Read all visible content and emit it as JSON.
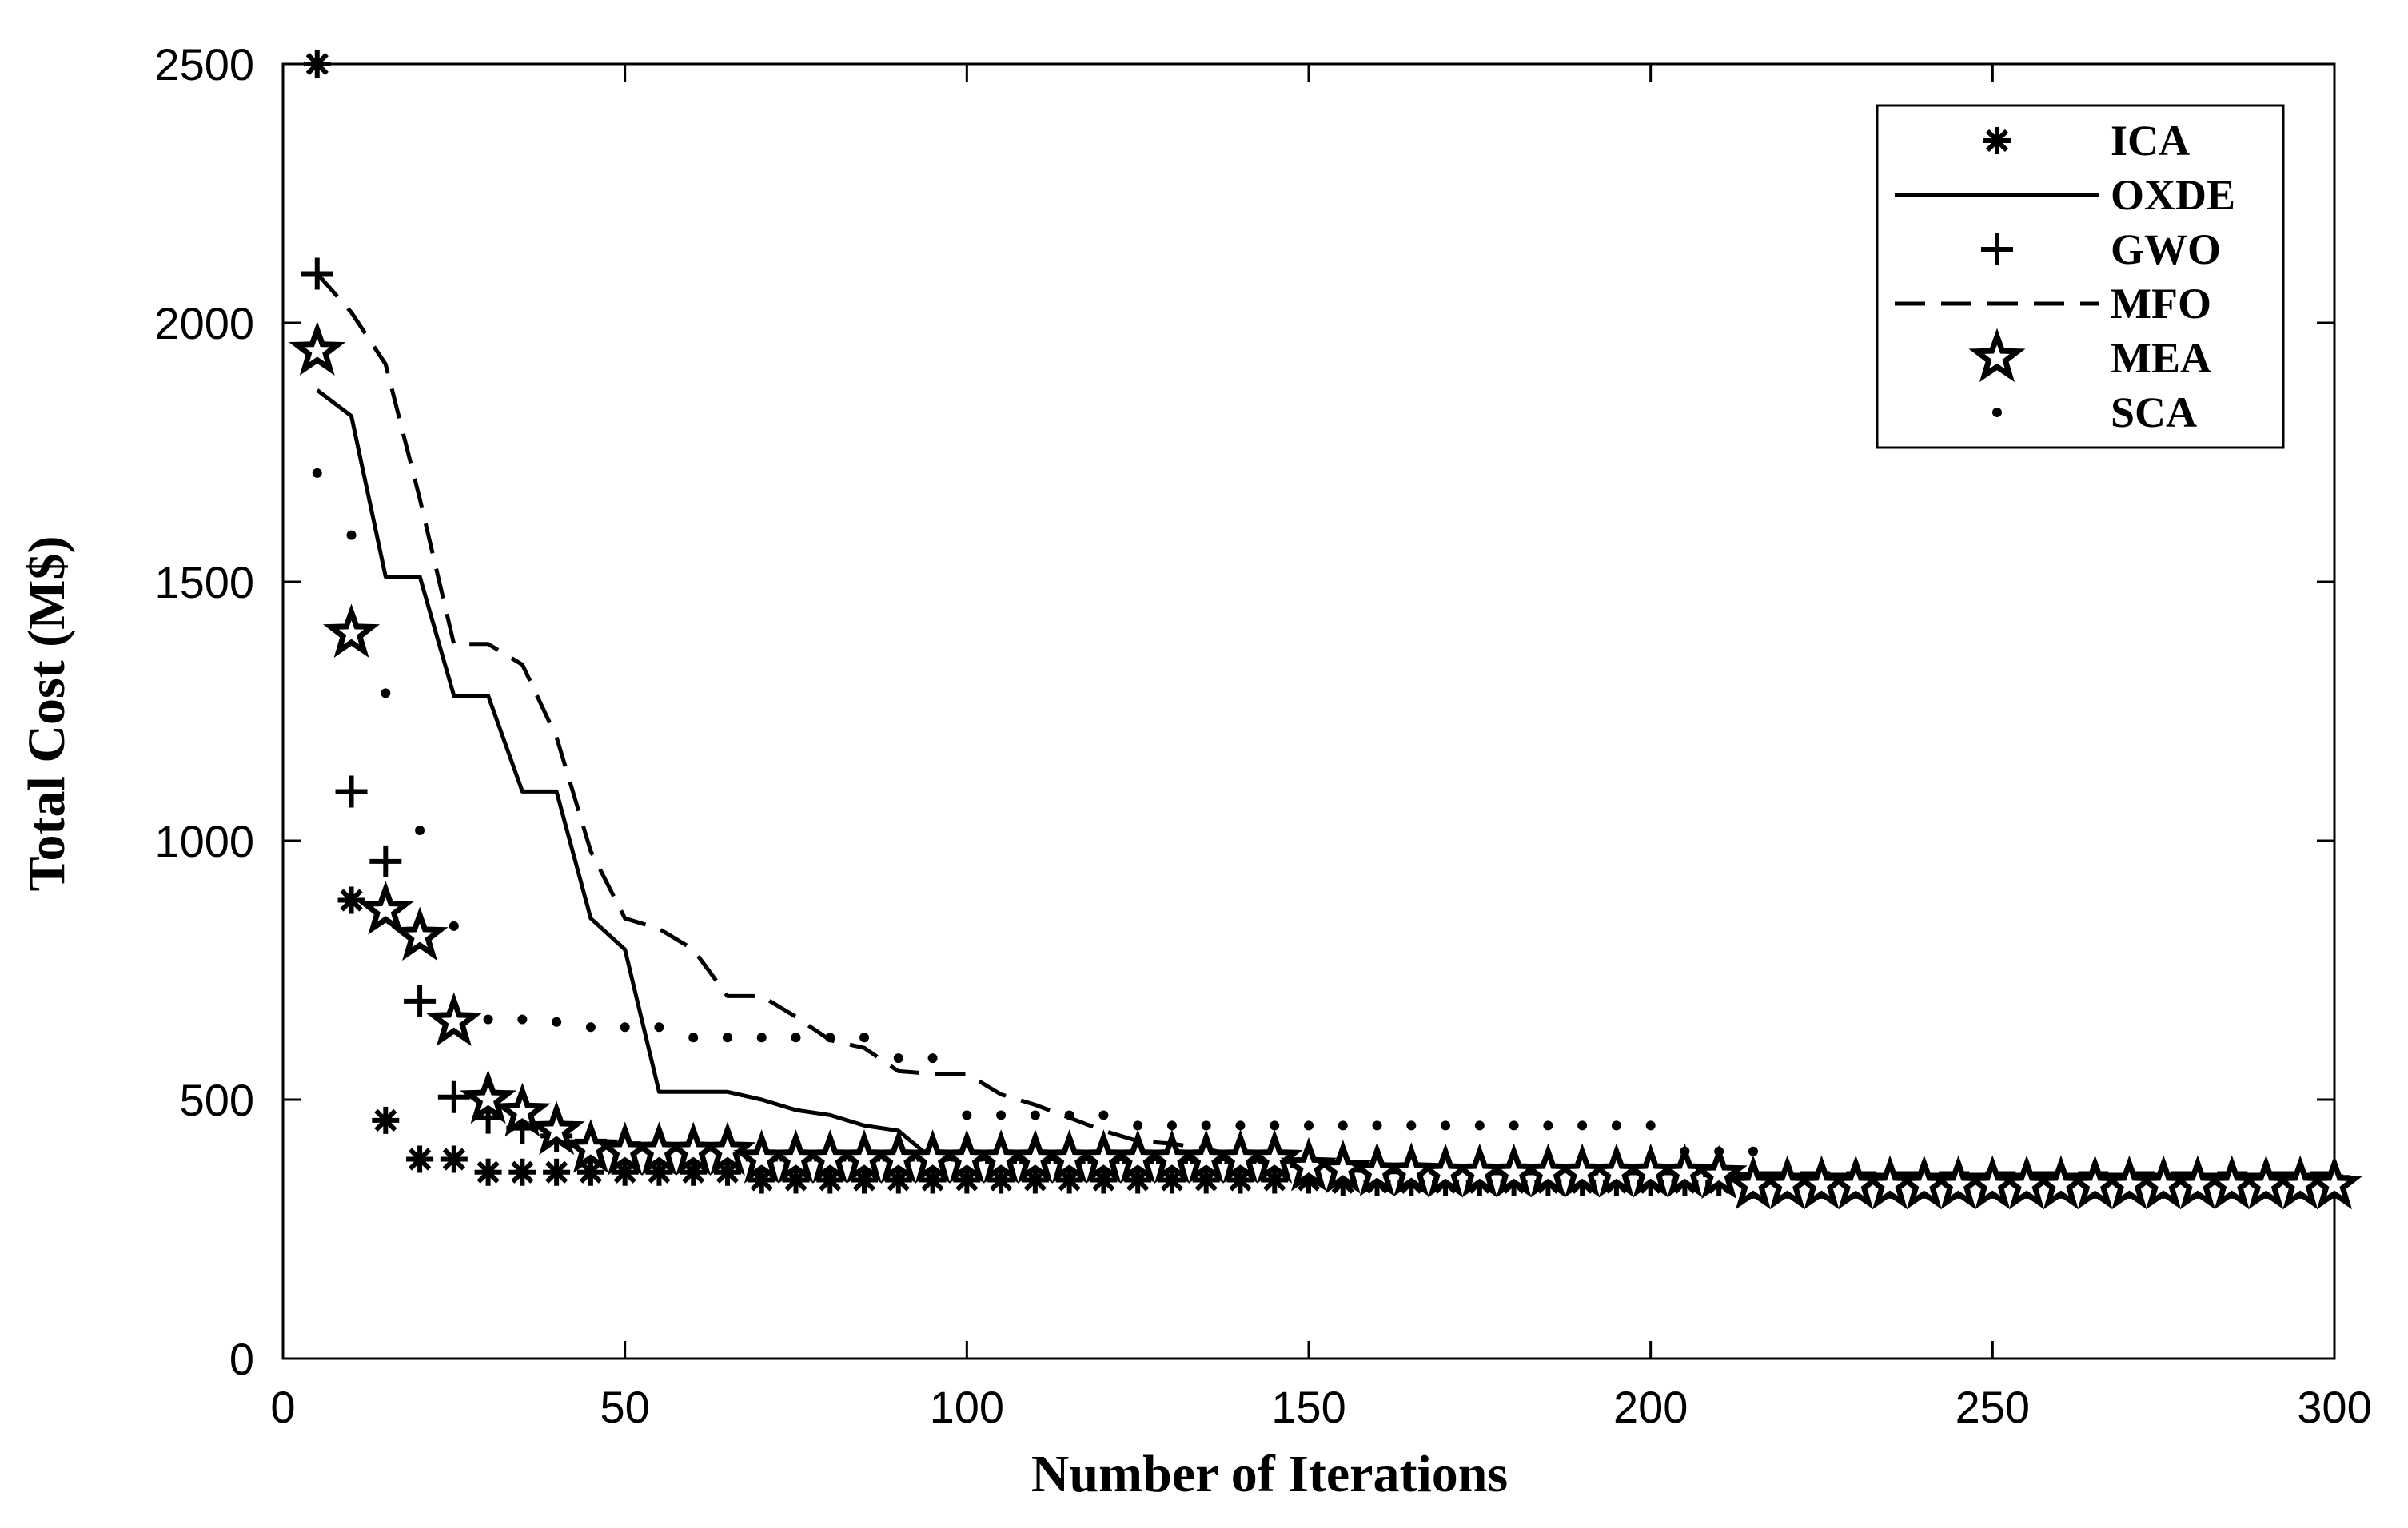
{
  "chart_data": {
    "type": "line",
    "xlabel": "Number of Iterations",
    "ylabel": "Total Cost (M$)",
    "xlim": [
      0,
      300
    ],
    "ylim": [
      0,
      2500
    ],
    "xticks": [
      0,
      50,
      100,
      150,
      200,
      250,
      300
    ],
    "yticks": [
      0,
      500,
      1000,
      1500,
      2000,
      2500
    ],
    "xtick_labels": [
      "0",
      "50",
      "100",
      "150",
      "200",
      "250",
      "300"
    ],
    "ytick_labels": [
      "0",
      "500",
      "1000",
      "1500",
      "2000",
      "2500"
    ],
    "grid": false,
    "legend_position": "top-right",
    "series": [
      {
        "name": "ICA",
        "style": "asterisk-markers",
        "color": "#000000",
        "x": [
          5,
          10,
          15,
          20,
          25,
          30,
          35,
          40,
          45,
          50,
          55,
          60,
          65,
          70,
          75,
          80,
          85,
          90,
          95,
          100,
          105,
          110,
          115,
          120,
          125,
          130,
          135,
          140,
          145,
          150,
          155,
          160,
          165,
          170,
          175,
          180,
          185,
          190,
          195,
          200,
          205,
          210,
          215,
          220,
          225,
          230,
          235,
          240,
          245,
          250,
          255,
          260,
          265,
          270,
          275,
          280,
          285,
          290,
          295,
          300
        ],
        "y": [
          2500,
          885,
          460,
          385,
          385,
          360,
          360,
          360,
          360,
          360,
          360,
          360,
          360,
          345,
          345,
          345,
          345,
          345,
          345,
          345,
          345,
          345,
          345,
          345,
          345,
          345,
          345,
          345,
          345,
          345,
          340,
          340,
          340,
          340,
          340,
          340,
          340,
          340,
          340,
          340,
          340,
          340,
          335,
          335,
          335,
          335,
          335,
          335,
          335,
          335,
          335,
          335,
          335,
          335,
          335,
          335,
          335,
          335,
          335,
          335
        ]
      },
      {
        "name": "OXDE",
        "style": "solid",
        "color": "#000000",
        "x": [
          5,
          10,
          15,
          20,
          25,
          30,
          35,
          40,
          45,
          50,
          55,
          60,
          65,
          70,
          75,
          80,
          85,
          90,
          95,
          100,
          105,
          110,
          115,
          120,
          125,
          130,
          135,
          140,
          145,
          150,
          155,
          160,
          165,
          170,
          175,
          180,
          185,
          190,
          195,
          200,
          205,
          210,
          215,
          220,
          225,
          230,
          235,
          240,
          245,
          250,
          255,
          260,
          265,
          270,
          275,
          280,
          285,
          290,
          295,
          300
        ],
        "y": [
          1870,
          1820,
          1510,
          1510,
          1280,
          1280,
          1095,
          1095,
          850,
          790,
          515,
          515,
          515,
          500,
          480,
          470,
          450,
          440,
          385,
          385,
          385,
          385,
          385,
          385,
          385,
          385,
          385,
          385,
          385,
          375,
          375,
          370,
          370,
          365,
          365,
          365,
          365,
          365,
          365,
          365,
          365,
          360,
          355,
          355,
          355,
          355,
          355,
          355,
          355,
          355,
          355,
          355,
          355,
          355,
          355,
          355,
          355,
          355,
          355,
          355
        ]
      },
      {
        "name": "GWO",
        "style": "plus-markers",
        "color": "#000000",
        "x": [
          5,
          10,
          15,
          20,
          25,
          30,
          35,
          40,
          45,
          50,
          55,
          60,
          65,
          70,
          75,
          80,
          85,
          90,
          95,
          100,
          105,
          110,
          115,
          120,
          125,
          130,
          135,
          140,
          145,
          150,
          155,
          160,
          165,
          170,
          175,
          180,
          185,
          190,
          195,
          200,
          205,
          210,
          215,
          220,
          225,
          230,
          235,
          240,
          245,
          250,
          255,
          260,
          265,
          270,
          275,
          280,
          285,
          290,
          295,
          300
        ],
        "y": [
          2095,
          1095,
          960,
          690,
          505,
          465,
          445,
          430,
          420,
          415,
          410,
          410,
          410,
          385,
          385,
          385,
          385,
          385,
          385,
          385,
          380,
          380,
          380,
          380,
          380,
          380,
          380,
          380,
          380,
          375,
          375,
          370,
          370,
          365,
          365,
          365,
          365,
          365,
          365,
          365,
          360,
          355,
          350,
          350,
          350,
          350,
          350,
          350,
          350,
          350,
          350,
          350,
          350,
          350,
          350,
          350,
          350,
          350,
          350,
          350
        ]
      },
      {
        "name": "MFO",
        "style": "dashed",
        "color": "#000000",
        "x": [
          5,
          10,
          15,
          20,
          25,
          30,
          35,
          40,
          45,
          50,
          55,
          60,
          65,
          70,
          75,
          80,
          85,
          90,
          95,
          100,
          105,
          110,
          115,
          120,
          125,
          130,
          135,
          140,
          145,
          150,
          155,
          160,
          165,
          170,
          175,
          180,
          185,
          190,
          195,
          200,
          205,
          210,
          215,
          220,
          225,
          230,
          235,
          240,
          245,
          250,
          255,
          260,
          265,
          270,
          275,
          280,
          285,
          290,
          295,
          300
        ],
        "y": [
          2095,
          2020,
          1920,
          1660,
          1380,
          1380,
          1340,
          1200,
          980,
          850,
          830,
          790,
          700,
          700,
          660,
          615,
          600,
          555,
          550,
          550,
          510,
          490,
          465,
          440,
          420,
          415,
          405,
          390,
          375,
          370,
          365,
          360,
          360,
          360,
          358,
          358,
          358,
          358,
          358,
          358,
          358,
          358,
          358,
          358,
          358,
          358,
          358,
          358,
          358,
          358,
          358,
          358,
          358,
          358,
          358,
          358,
          358,
          358,
          358,
          358
        ]
      },
      {
        "name": "MEA",
        "style": "star-markers",
        "color": "#000000",
        "x": [
          5,
          10,
          15,
          20,
          25,
          30,
          35,
          40,
          45,
          50,
          55,
          60,
          65,
          70,
          75,
          80,
          85,
          90,
          95,
          100,
          105,
          110,
          115,
          120,
          125,
          130,
          135,
          140,
          145,
          150,
          155,
          160,
          165,
          170,
          175,
          180,
          185,
          190,
          195,
          200,
          205,
          210,
          215,
          220,
          225,
          230,
          235,
          240,
          245,
          250,
          255,
          260,
          265,
          270,
          275,
          280,
          285,
          290,
          295,
          300
        ],
        "y": [
          1945,
          1400,
          865,
          815,
          650,
          500,
          475,
          440,
          405,
          400,
          400,
          400,
          400,
          385,
          385,
          385,
          385,
          385,
          385,
          385,
          385,
          385,
          385,
          385,
          385,
          385,
          385,
          385,
          385,
          370,
          365,
          360,
          360,
          358,
          358,
          358,
          358,
          358,
          358,
          358,
          358,
          355,
          335,
          335,
          335,
          335,
          335,
          335,
          335,
          335,
          335,
          335,
          335,
          335,
          335,
          335,
          335,
          335,
          335,
          335
        ]
      },
      {
        "name": "SCA",
        "style": "dots",
        "color": "#000000",
        "x": [
          5,
          10,
          15,
          20,
          25,
          30,
          35,
          40,
          45,
          50,
          55,
          60,
          65,
          70,
          75,
          80,
          85,
          90,
          95,
          100,
          105,
          110,
          115,
          120,
          125,
          130,
          135,
          140,
          145,
          150,
          155,
          160,
          165,
          170,
          175,
          180,
          185,
          190,
          195,
          200,
          205,
          210,
          215
        ],
        "y": [
          1710,
          1590,
          1285,
          1020,
          835,
          655,
          655,
          650,
          640,
          640,
          640,
          620,
          620,
          620,
          620,
          620,
          620,
          580,
          580,
          470,
          470,
          470,
          470,
          470,
          450,
          450,
          450,
          450,
          450,
          450,
          450,
          450,
          450,
          450,
          450,
          450,
          450,
          450,
          450,
          450,
          400,
          400,
          400
        ]
      }
    ]
  }
}
